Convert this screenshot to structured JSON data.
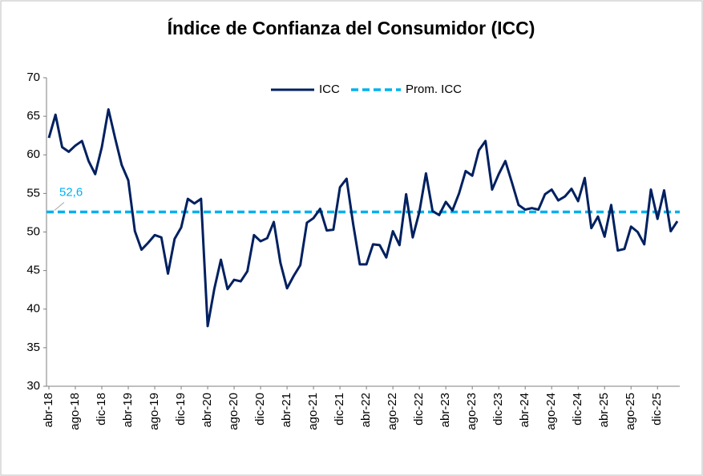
{
  "chart_data": {
    "type": "line",
    "title": "Índice de Confianza del Consumidor (ICC)",
    "categories": [
      "abr-18",
      null,
      null,
      null,
      "ago-18",
      null,
      null,
      null,
      "dic-18",
      null,
      null,
      null,
      "abr-19",
      null,
      null,
      null,
      "ago-19",
      null,
      null,
      null,
      "dic-19",
      null,
      null,
      null,
      "abr-20",
      null,
      null,
      null,
      "ago-20",
      null,
      null,
      null,
      "dic-20",
      null,
      null,
      null,
      "abr-21",
      null,
      null,
      null,
      "ago-21",
      null,
      null,
      null,
      "dic-21",
      null,
      null,
      null,
      "abr-22",
      null,
      null,
      null,
      "ago-22",
      null,
      null,
      null,
      "dic-22",
      null,
      null,
      null,
      "abr-23",
      null,
      null,
      null,
      "ago-23",
      null,
      null,
      null,
      "dic-23",
      null,
      null,
      null,
      "abr-24",
      null,
      null,
      null,
      "ago-24",
      null,
      null,
      null,
      "dic-24",
      null,
      null,
      null,
      "abr-25",
      null,
      null,
      null,
      "ago-25",
      null,
      null,
      null,
      "dic-25",
      null,
      null,
      null
    ],
    "series": [
      {
        "name": "ICC",
        "color": "#002060",
        "values": [
          62.2,
          65.2,
          61.0,
          60.4,
          61.2,
          61.8,
          59.2,
          57.5,
          61.0,
          65.9,
          62.2,
          58.7,
          56.7,
          50.1,
          47.7,
          48.6,
          49.6,
          49.3,
          44.6,
          49.1,
          50.6,
          54.3,
          53.7,
          54.3,
          37.8,
          42.6,
          46.4,
          42.6,
          43.8,
          43.6,
          44.9,
          49.6,
          48.8,
          49.2,
          51.3,
          46.0,
          42.7,
          44.3,
          45.7,
          51.2,
          51.8,
          53.0,
          50.2,
          50.3,
          55.8,
          56.9,
          51.0,
          45.8,
          45.8,
          48.4,
          48.3,
          46.7,
          50.1,
          48.3,
          54.9,
          49.3,
          52.6,
          57.6,
          52.7,
          52.2,
          53.9,
          52.8,
          55.0,
          57.9,
          57.3,
          60.6,
          61.8,
          55.5,
          57.5,
          59.2,
          56.4,
          53.5,
          52.9,
          53.1,
          52.9,
          54.9,
          55.5,
          54.1,
          54.6,
          55.6,
          54.0,
          57.0,
          50.5,
          52.0,
          49.4,
          53.5,
          47.6,
          47.8,
          50.7,
          50.0,
          48.4,
          55.5,
          51.7,
          55.4,
          50.1,
          51.4
        ]
      }
    ],
    "average": {
      "name": "Prom. ICC",
      "color": "#00b0f0",
      "value": 52.6,
      "value_label": "52,6"
    },
    "ylim": [
      30,
      70
    ],
    "yticks": [
      30,
      35,
      40,
      45,
      50,
      55,
      60,
      65,
      70
    ],
    "grid": false,
    "legend": "top"
  }
}
